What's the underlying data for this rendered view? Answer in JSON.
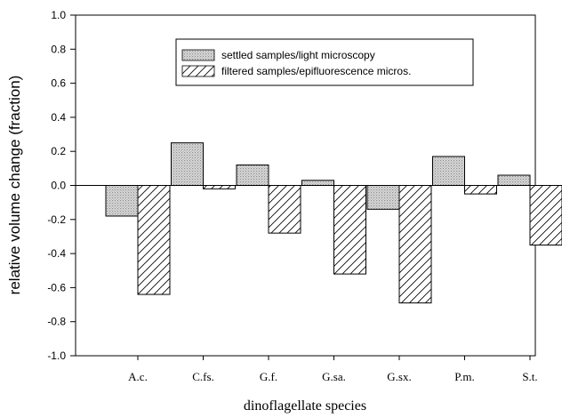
{
  "chart_data": {
    "type": "bar",
    "title": "",
    "xlabel": "dinoflagellate species",
    "ylabel": "relative volume change (fraction)",
    "ylim": [
      -1.0,
      1.0
    ],
    "yticks": [
      -1.0,
      -0.8,
      -0.6,
      -0.4,
      -0.2,
      0.0,
      0.2,
      0.4,
      0.6,
      0.8,
      1.0
    ],
    "ytick_labels": [
      "-1.0",
      "-0.8",
      "-0.6",
      "-0.4",
      "-0.2",
      "0.0",
      "0.2",
      "0.4",
      "0.6",
      "0.8",
      "1.0"
    ],
    "grid": false,
    "legend_position": "top-right",
    "categories": [
      "A.c.",
      "C.fs.",
      "G.f.",
      "G.sa.",
      "G.sx.",
      "P.m.",
      "S.t."
    ],
    "series": [
      {
        "name": "settled samples/light microscopy",
        "pattern": "stipple",
        "values": [
          -0.18,
          0.25,
          0.12,
          0.03,
          -0.14,
          0.17,
          0.06
        ]
      },
      {
        "name": "filtered samples/epifluorescence micros.",
        "pattern": "diagonal-hatch",
        "values": [
          -0.64,
          -0.02,
          -0.28,
          -0.52,
          -0.69,
          -0.05,
          -0.35
        ]
      }
    ]
  }
}
